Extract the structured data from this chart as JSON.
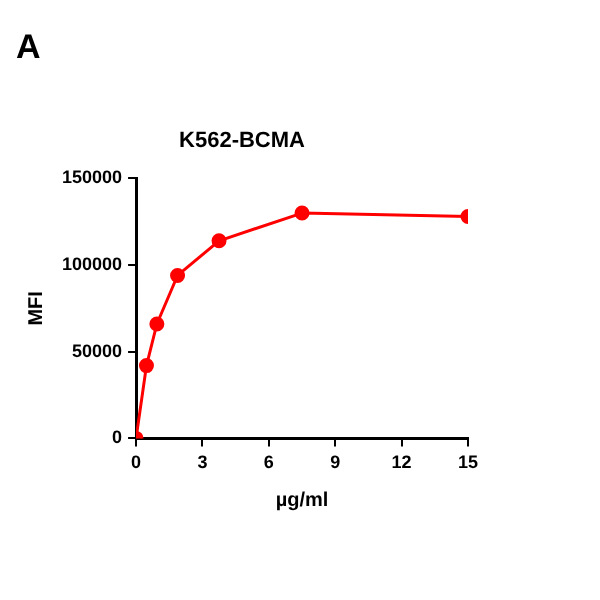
{
  "chart_data": {
    "type": "line",
    "title": "K562-BCMA",
    "xlabel": "µg/ml",
    "ylabel": "MFI",
    "annotations": [
      "A"
    ],
    "x": [
      0,
      0.47,
      0.94,
      1.875,
      3.75,
      7.5,
      15
    ],
    "series": [
      {
        "color": "#ff0000",
        "values": [
          0,
          42000,
          66000,
          94000,
          114000,
          130000,
          128000
        ]
      }
    ],
    "xlim": [
      0,
      15
    ],
    "xticks": [
      0,
      3,
      6,
      9,
      12,
      15
    ],
    "ylim": [
      0,
      150000
    ],
    "yticks": [
      0,
      50000,
      100000,
      150000
    ],
    "grid": false,
    "legend": false,
    "marker": "circle",
    "line_style": "solid"
  }
}
